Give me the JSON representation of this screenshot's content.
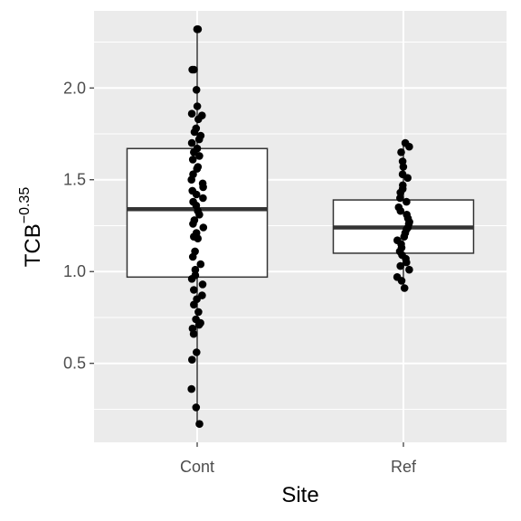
{
  "chart_data": {
    "type": "boxplot",
    "xlabel": "Site",
    "ylabel": "TCB",
    "ylabel_exponent": "−0.35",
    "categories": [
      "Cont",
      "Ref"
    ],
    "ylim": [
      0.07,
      2.42
    ],
    "yticks": [
      0.5,
      1.0,
      1.5,
      2.0
    ],
    "ytick_labels": [
      "0.5",
      "1.0",
      "1.5",
      "2.0"
    ],
    "grid": true,
    "legend": "none",
    "colors": {
      "panel": "#ebebeb",
      "grid": "#ffffff",
      "box_fill": "#ffffff",
      "box_line": "#333333",
      "points": "#000000"
    },
    "boxes": [
      {
        "category": "Cont",
        "min": 0.17,
        "q1": 0.97,
        "median": 1.34,
        "q3": 1.67,
        "max": 2.32,
        "points": [
          2.32,
          2.32,
          2.1,
          2.1,
          1.99,
          1.9,
          1.86,
          1.85,
          1.83,
          1.78,
          1.76,
          1.74,
          1.72,
          1.7,
          1.67,
          1.65,
          1.63,
          1.61,
          1.57,
          1.56,
          1.53,
          1.5,
          1.48,
          1.46,
          1.44,
          1.42,
          1.4,
          1.38,
          1.36,
          1.33,
          1.31,
          1.28,
          1.26,
          1.24,
          1.21,
          1.19,
          1.18,
          1.11,
          1.08,
          1.04,
          1.01,
          0.98,
          0.96,
          0.93,
          0.9,
          0.87,
          0.85,
          0.82,
          0.78,
          0.74,
          0.72,
          0.71,
          0.69,
          0.66,
          0.56,
          0.52,
          0.36,
          0.26,
          0.17
        ]
      },
      {
        "category": "Ref",
        "min": 0.91,
        "q1": 1.1,
        "median": 1.24,
        "q3": 1.39,
        "max": 1.7,
        "points": [
          1.7,
          1.68,
          1.65,
          1.6,
          1.57,
          1.53,
          1.51,
          1.47,
          1.45,
          1.43,
          1.4,
          1.38,
          1.35,
          1.33,
          1.31,
          1.29,
          1.27,
          1.26,
          1.24,
          1.23,
          1.21,
          1.19,
          1.17,
          1.15,
          1.13,
          1.11,
          1.09,
          1.07,
          1.05,
          1.03,
          1.01,
          0.97,
          0.95,
          0.91
        ]
      }
    ]
  }
}
